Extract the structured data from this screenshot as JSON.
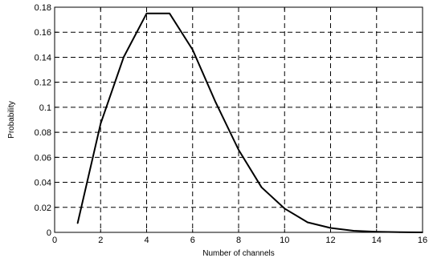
{
  "chart_data": {
    "type": "line",
    "title": "",
    "xlabel": "Number of channels",
    "ylabel": "Probability",
    "xlim": [
      0,
      16
    ],
    "ylim": [
      0,
      0.18
    ],
    "grid": true,
    "grid_style": "dashed",
    "x_ticks": [
      "0",
      "2",
      "4",
      "6",
      "8",
      "10",
      "12",
      "14",
      "16"
    ],
    "y_ticks": [
      "0",
      "0.02",
      "0.04",
      "0.06",
      "0.08",
      "0.1",
      "0.12",
      "0.14",
      "0.16",
      "0.18"
    ],
    "series": [
      {
        "color": "#000000",
        "x": [
          1,
          2,
          3,
          4,
          5,
          6,
          7,
          8,
          9,
          10,
          11,
          12,
          13,
          14,
          15,
          16
        ],
        "y": [
          0.0073,
          0.087,
          0.14,
          0.175,
          0.175,
          0.146,
          0.104,
          0.066,
          0.036,
          0.019,
          0.008,
          0.0035,
          0.0013,
          0.0005,
          0.0001,
          0.0
        ]
      }
    ]
  }
}
